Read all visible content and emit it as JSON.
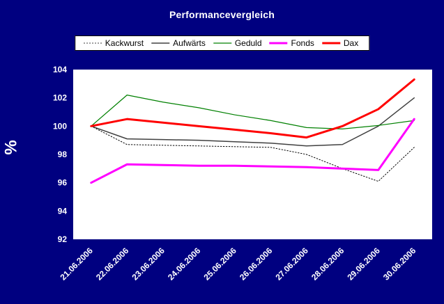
{
  "colors": {
    "background": "#000080",
    "plot_background": "#ffffff",
    "axis_text": "#ffffff",
    "title_text": "#ffffff",
    "legend_background": "#ffffff",
    "legend_border": "#000000"
  },
  "chart_data": {
    "type": "line",
    "title": "Performancevergleich",
    "ylabel": "%",
    "xlabel": "",
    "ylim": [
      92,
      104
    ],
    "ytick_step": 2,
    "grid": false,
    "legend_position": "top",
    "categories": [
      "21.06.2006",
      "22.06.2006",
      "23.06.2006",
      "24.06.2006",
      "25.06.2006",
      "26.06.2006",
      "27.06.2006",
      "28.06.2006",
      "29.06.2006",
      "30.06.2006"
    ],
    "series": [
      {
        "name": "Kackwurst",
        "color": "#000000",
        "width": 1,
        "dash": "1.5,2.5",
        "values": [
          100,
          98.7,
          98.65,
          98.6,
          98.55,
          98.5,
          98.0,
          97.0,
          96.1,
          98.5
        ]
      },
      {
        "name": "Aufwärts",
        "color": "#404040",
        "width": 1.5,
        "dash": "",
        "values": [
          100,
          99.1,
          99.05,
          99.0,
          98.9,
          98.8,
          98.6,
          98.7,
          100.0,
          102.0
        ]
      },
      {
        "name": "Geduld",
        "color": "#008000",
        "width": 1.25,
        "dash": "",
        "values": [
          100,
          102.2,
          101.7,
          101.3,
          100.8,
          100.4,
          99.9,
          99.8,
          100.05,
          100.4
        ]
      },
      {
        "name": "Fonds",
        "color": "#ff00ff",
        "width": 3,
        "dash": "",
        "values": [
          96.0,
          97.3,
          97.25,
          97.2,
          97.2,
          97.15,
          97.1,
          97.0,
          96.9,
          100.5
        ]
      },
      {
        "name": "Dax",
        "color": "#ff0000",
        "width": 3,
        "dash": "",
        "values": [
          100,
          100.5,
          100.25,
          100.0,
          99.75,
          99.5,
          99.2,
          100.0,
          101.2,
          103.3
        ]
      }
    ]
  }
}
